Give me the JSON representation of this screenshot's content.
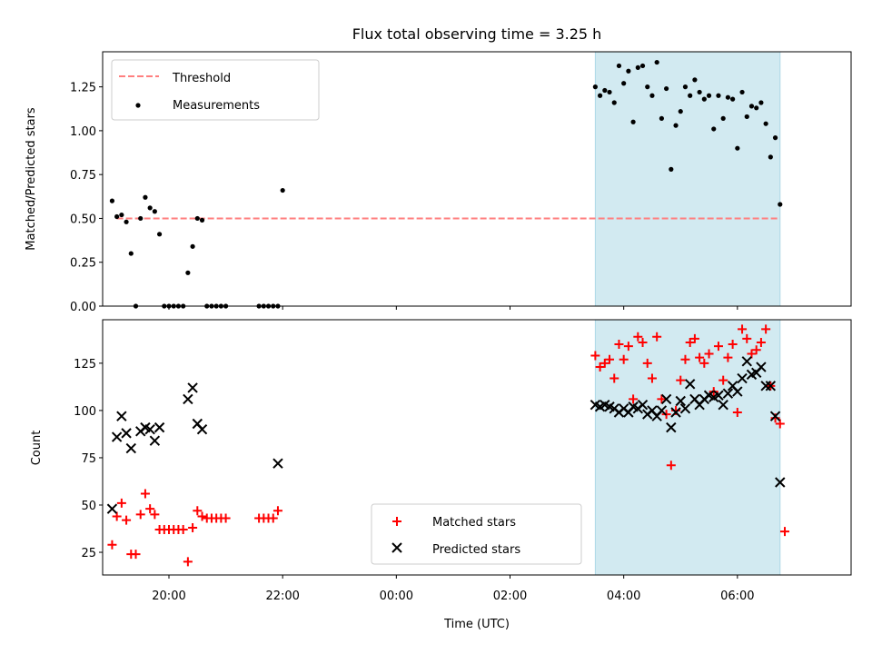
{
  "chart_data": [
    {
      "type": "scatter",
      "title": "Flux total observing time = 3.25 h",
      "xlabel": "",
      "ylabel": "Matched/Predicted stars",
      "xlim": [
        "18:50",
        "08:00"
      ],
      "ylim": [
        0,
        1.45
      ],
      "y_ticks": [
        0.0,
        0.25,
        0.5,
        0.75,
        1.0,
        1.25
      ],
      "y_tick_labels": [
        "0.00",
        "0.25",
        "0.50",
        "0.75",
        "1.00",
        "1.25"
      ],
      "highlight_span": [
        "03:30",
        "06:45"
      ],
      "highlight_color": "#add8e6",
      "legend_position": "upper left",
      "series": [
        {
          "name": "Threshold",
          "style": "dashed-line",
          "color": "#ff7f7f",
          "points": [
            {
              "x": "19:05",
              "y": 0.5
            },
            {
              "x": "06:45",
              "y": 0.5
            }
          ]
        },
        {
          "name": "Measurements",
          "style": "dot",
          "color": "#000000",
          "points": [
            {
              "x": "19:00",
              "y": 0.6
            },
            {
              "x": "19:05",
              "y": 0.51
            },
            {
              "x": "19:10",
              "y": 0.52
            },
            {
              "x": "19:15",
              "y": 0.48
            },
            {
              "x": "19:20",
              "y": 0.3
            },
            {
              "x": "19:25",
              "y": 0.0
            },
            {
              "x": "19:30",
              "y": 0.5
            },
            {
              "x": "19:35",
              "y": 0.62
            },
            {
              "x": "19:40",
              "y": 0.56
            },
            {
              "x": "19:45",
              "y": 0.54
            },
            {
              "x": "19:50",
              "y": 0.41
            },
            {
              "x": "19:55",
              "y": 0.0
            },
            {
              "x": "20:00",
              "y": 0.0
            },
            {
              "x": "20:05",
              "y": 0.0
            },
            {
              "x": "20:10",
              "y": 0.0
            },
            {
              "x": "20:15",
              "y": 0.0
            },
            {
              "x": "20:20",
              "y": 0.19
            },
            {
              "x": "20:25",
              "y": 0.34
            },
            {
              "x": "20:30",
              "y": 0.5
            },
            {
              "x": "20:35",
              "y": 0.49
            },
            {
              "x": "20:40",
              "y": 0.0
            },
            {
              "x": "20:45",
              "y": 0.0
            },
            {
              "x": "20:50",
              "y": 0.0
            },
            {
              "x": "20:55",
              "y": 0.0
            },
            {
              "x": "21:00",
              "y": 0.0
            },
            {
              "x": "21:35",
              "y": 0.0
            },
            {
              "x": "21:40",
              "y": 0.0
            },
            {
              "x": "21:45",
              "y": 0.0
            },
            {
              "x": "21:50",
              "y": 0.0
            },
            {
              "x": "21:55",
              "y": 0.0
            },
            {
              "x": "22:00",
              "y": 0.66
            },
            {
              "x": "03:30",
              "y": 1.25
            },
            {
              "x": "03:35",
              "y": 1.2
            },
            {
              "x": "03:40",
              "y": 1.23
            },
            {
              "x": "03:45",
              "y": 1.22
            },
            {
              "x": "03:50",
              "y": 1.16
            },
            {
              "x": "03:55",
              "y": 1.37
            },
            {
              "x": "04:00",
              "y": 1.27
            },
            {
              "x": "04:05",
              "y": 1.34
            },
            {
              "x": "04:10",
              "y": 1.05
            },
            {
              "x": "04:15",
              "y": 1.36
            },
            {
              "x": "04:20",
              "y": 1.37
            },
            {
              "x": "04:25",
              "y": 1.25
            },
            {
              "x": "04:30",
              "y": 1.2
            },
            {
              "x": "04:35",
              "y": 1.39
            },
            {
              "x": "04:40",
              "y": 1.07
            },
            {
              "x": "04:45",
              "y": 1.24
            },
            {
              "x": "04:50",
              "y": 0.78
            },
            {
              "x": "04:55",
              "y": 1.03
            },
            {
              "x": "05:00",
              "y": 1.11
            },
            {
              "x": "05:05",
              "y": 1.25
            },
            {
              "x": "05:10",
              "y": 1.2
            },
            {
              "x": "05:15",
              "y": 1.29
            },
            {
              "x": "05:20",
              "y": 1.22
            },
            {
              "x": "05:25",
              "y": 1.18
            },
            {
              "x": "05:30",
              "y": 1.2
            },
            {
              "x": "05:35",
              "y": 1.01
            },
            {
              "x": "05:40",
              "y": 1.2
            },
            {
              "x": "05:45",
              "y": 1.07
            },
            {
              "x": "05:50",
              "y": 1.19
            },
            {
              "x": "05:55",
              "y": 1.18
            },
            {
              "x": "06:00",
              "y": 0.9
            },
            {
              "x": "06:05",
              "y": 1.22
            },
            {
              "x": "06:10",
              "y": 1.08
            },
            {
              "x": "06:15",
              "y": 1.14
            },
            {
              "x": "06:20",
              "y": 1.13
            },
            {
              "x": "06:25",
              "y": 1.16
            },
            {
              "x": "06:30",
              "y": 1.04
            },
            {
              "x": "06:35",
              "y": 0.85
            },
            {
              "x": "06:40",
              "y": 0.96
            },
            {
              "x": "06:45",
              "y": 0.58
            }
          ]
        }
      ]
    },
    {
      "type": "scatter",
      "title": "",
      "xlabel": "Time (UTC)",
      "ylabel": "Count",
      "xlim": [
        "18:50",
        "08:00"
      ],
      "ylim": [
        13,
        148
      ],
      "x_ticks": [
        "20:00",
        "22:00",
        "00:00",
        "02:00",
        "04:00",
        "06:00"
      ],
      "y_ticks": [
        25,
        50,
        75,
        100,
        125
      ],
      "highlight_span": [
        "03:30",
        "06:45"
      ],
      "highlight_color": "#add8e6",
      "legend_position": "lower center",
      "series": [
        {
          "name": "Matched stars",
          "style": "plus",
          "color": "#ff0000",
          "points": [
            {
              "x": "19:00",
              "y": 29
            },
            {
              "x": "19:05",
              "y": 44
            },
            {
              "x": "19:10",
              "y": 51
            },
            {
              "x": "19:15",
              "y": 42
            },
            {
              "x": "19:20",
              "y": 24
            },
            {
              "x": "19:25",
              "y": 24
            },
            {
              "x": "19:30",
              "y": 45
            },
            {
              "x": "19:35",
              "y": 56
            },
            {
              "x": "19:40",
              "y": 48
            },
            {
              "x": "19:45",
              "y": 45
            },
            {
              "x": "19:50",
              "y": 37
            },
            {
              "x": "19:55",
              "y": 37
            },
            {
              "x": "20:00",
              "y": 37
            },
            {
              "x": "20:05",
              "y": 37
            },
            {
              "x": "20:10",
              "y": 37
            },
            {
              "x": "20:15",
              "y": 37
            },
            {
              "x": "20:20",
              "y": 20
            },
            {
              "x": "20:25",
              "y": 38
            },
            {
              "x": "20:30",
              "y": 47
            },
            {
              "x": "20:35",
              "y": 44
            },
            {
              "x": "20:40",
              "y": 43
            },
            {
              "x": "20:45",
              "y": 43
            },
            {
              "x": "20:50",
              "y": 43
            },
            {
              "x": "20:55",
              "y": 43
            },
            {
              "x": "21:00",
              "y": 43
            },
            {
              "x": "21:35",
              "y": 43
            },
            {
              "x": "21:40",
              "y": 43
            },
            {
              "x": "21:45",
              "y": 43
            },
            {
              "x": "21:50",
              "y": 43
            },
            {
              "x": "21:55",
              "y": 47
            },
            {
              "x": "03:30",
              "y": 129
            },
            {
              "x": "03:35",
              "y": 123
            },
            {
              "x": "03:40",
              "y": 125
            },
            {
              "x": "03:45",
              "y": 127
            },
            {
              "x": "03:50",
              "y": 117
            },
            {
              "x": "03:55",
              "y": 135
            },
            {
              "x": "04:00",
              "y": 127
            },
            {
              "x": "04:05",
              "y": 134
            },
            {
              "x": "04:10",
              "y": 106
            },
            {
              "x": "04:15",
              "y": 139
            },
            {
              "x": "04:20",
              "y": 136
            },
            {
              "x": "04:25",
              "y": 125
            },
            {
              "x": "04:30",
              "y": 117
            },
            {
              "x": "04:35",
              "y": 139
            },
            {
              "x": "04:40",
              "y": 106
            },
            {
              "x": "04:45",
              "y": 98
            },
            {
              "x": "04:50",
              "y": 71
            },
            {
              "x": "04:55",
              "y": 100
            },
            {
              "x": "05:00",
              "y": 116
            },
            {
              "x": "05:05",
              "y": 127
            },
            {
              "x": "05:10",
              "y": 136
            },
            {
              "x": "05:15",
              "y": 138
            },
            {
              "x": "05:20",
              "y": 128
            },
            {
              "x": "05:25",
              "y": 125
            },
            {
              "x": "05:30",
              "y": 130
            },
            {
              "x": "05:35",
              "y": 110
            },
            {
              "x": "05:40",
              "y": 134
            },
            {
              "x": "05:45",
              "y": 116
            },
            {
              "x": "05:50",
              "y": 128
            },
            {
              "x": "05:55",
              "y": 135
            },
            {
              "x": "06:00",
              "y": 99
            },
            {
              "x": "06:05",
              "y": 143
            },
            {
              "x": "06:10",
              "y": 138
            },
            {
              "x": "06:15",
              "y": 130
            },
            {
              "x": "06:20",
              "y": 132
            },
            {
              "x": "06:25",
              "y": 136
            },
            {
              "x": "06:30",
              "y": 143
            },
            {
              "x": "06:35",
              "y": 113
            },
            {
              "x": "06:40",
              "y": 96
            },
            {
              "x": "06:45",
              "y": 93
            },
            {
              "x": "06:50",
              "y": 36
            }
          ]
        },
        {
          "name": "Predicted stars",
          "style": "x",
          "color": "#000000",
          "points": [
            {
              "x": "19:00",
              "y": 48
            },
            {
              "x": "19:05",
              "y": 86
            },
            {
              "x": "19:10",
              "y": 97
            },
            {
              "x": "19:15",
              "y": 88
            },
            {
              "x": "19:20",
              "y": 80
            },
            {
              "x": "19:30",
              "y": 89
            },
            {
              "x": "19:35",
              "y": 91
            },
            {
              "x": "19:40",
              "y": 90
            },
            {
              "x": "19:45",
              "y": 84
            },
            {
              "x": "19:50",
              "y": 91
            },
            {
              "x": "20:20",
              "y": 106
            },
            {
              "x": "20:25",
              "y": 112
            },
            {
              "x": "20:30",
              "y": 93
            },
            {
              "x": "20:35",
              "y": 90
            },
            {
              "x": "21:55",
              "y": 72
            },
            {
              "x": "03:30",
              "y": 103
            },
            {
              "x": "03:35",
              "y": 102
            },
            {
              "x": "03:40",
              "y": 103
            },
            {
              "x": "03:45",
              "y": 102
            },
            {
              "x": "03:50",
              "y": 101
            },
            {
              "x": "03:55",
              "y": 99
            },
            {
              "x": "04:00",
              "y": 101
            },
            {
              "x": "04:05",
              "y": 99
            },
            {
              "x": "04:10",
              "y": 102
            },
            {
              "x": "04:15",
              "y": 101
            },
            {
              "x": "04:20",
              "y": 103
            },
            {
              "x": "04:25",
              "y": 98
            },
            {
              "x": "04:30",
              "y": 100
            },
            {
              "x": "04:35",
              "y": 97
            },
            {
              "x": "04:40",
              "y": 100
            },
            {
              "x": "04:45",
              "y": 106
            },
            {
              "x": "04:50",
              "y": 91
            },
            {
              "x": "04:55",
              "y": 99
            },
            {
              "x": "05:00",
              "y": 105
            },
            {
              "x": "05:05",
              "y": 101
            },
            {
              "x": "05:10",
              "y": 114
            },
            {
              "x": "05:15",
              "y": 106
            },
            {
              "x": "05:20",
              "y": 103
            },
            {
              "x": "05:25",
              "y": 106
            },
            {
              "x": "05:30",
              "y": 108
            },
            {
              "x": "05:35",
              "y": 107
            },
            {
              "x": "05:40",
              "y": 108
            },
            {
              "x": "05:45",
              "y": 103
            },
            {
              "x": "05:50",
              "y": 109
            },
            {
              "x": "05:55",
              "y": 113
            },
            {
              "x": "06:00",
              "y": 110
            },
            {
              "x": "06:05",
              "y": 117
            },
            {
              "x": "06:10",
              "y": 126
            },
            {
              "x": "06:15",
              "y": 119
            },
            {
              "x": "06:20",
              "y": 120
            },
            {
              "x": "06:25",
              "y": 123
            },
            {
              "x": "06:30",
              "y": 113
            },
            {
              "x": "06:35",
              "y": 113
            },
            {
              "x": "06:40",
              "y": 97
            },
            {
              "x": "06:45",
              "y": 62
            }
          ]
        }
      ]
    }
  ]
}
